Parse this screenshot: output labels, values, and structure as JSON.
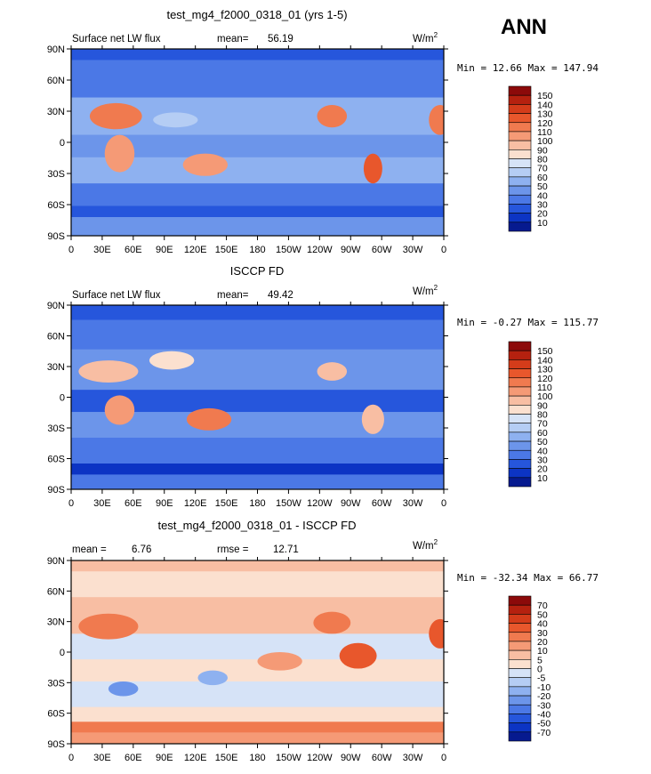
{
  "season": "ANN",
  "units": "W/m",
  "units_sup": "2",
  "x_ticks": [
    "0",
    "30E",
    "60E",
    "90E",
    "120E",
    "150E",
    "180",
    "150W",
    "120W",
    "90W",
    "60W",
    "30W",
    "0"
  ],
  "y_ticks": [
    "90N",
    "60N",
    "30N",
    "0",
    "30S",
    "60S",
    "90S"
  ],
  "chart_data": [
    {
      "type": "heatmap",
      "title": "test_mg4_f2000_0318_01 (yrs 1-5)",
      "left_label": "Surface net LW flux",
      "stat_label": "mean=",
      "stat_value": "56.19",
      "units": "W/m2",
      "min_label": "Min =",
      "min_value": "12.66",
      "max_label": "Max =",
      "max_value": "147.94",
      "x_range": [
        0,
        360
      ],
      "y_range": [
        -90,
        90
      ],
      "colorbar_levels": [
        "150",
        "140",
        "130",
        "120",
        "110",
        "100",
        "90",
        "80",
        "70",
        "60",
        "50",
        "40",
        "30",
        "20",
        "10"
      ],
      "colorbar_colors": [
        "#8c0a0a",
        "#b5210f",
        "#d43c1a",
        "#e8572c",
        "#f07a4f",
        "#f59a76",
        "#f8bea3",
        "#fbe0cf",
        "#d6e3f7",
        "#b5cdf4",
        "#8eb1f0",
        "#6c95ea",
        "#4b78e6",
        "#2656dc",
        "#0c34c4",
        "#061a8f"
      ]
    },
    {
      "type": "heatmap",
      "title": "ISCCP FD",
      "left_label": "Surface net LW flux",
      "stat_label": "mean=",
      "stat_value": "49.42",
      "units": "W/m2",
      "min_label": "Min =",
      "min_value": "-0.27",
      "max_label": "Max =",
      "max_value": "115.77",
      "x_range": [
        0,
        360
      ],
      "y_range": [
        -90,
        90
      ],
      "colorbar_levels": [
        "150",
        "140",
        "130",
        "120",
        "110",
        "100",
        "90",
        "80",
        "70",
        "60",
        "50",
        "40",
        "30",
        "20",
        "10"
      ],
      "colorbar_colors": [
        "#8c0a0a",
        "#b5210f",
        "#d43c1a",
        "#e8572c",
        "#f07a4f",
        "#f59a76",
        "#f8bea3",
        "#fbe0cf",
        "#d6e3f7",
        "#b5cdf4",
        "#8eb1f0",
        "#6c95ea",
        "#4b78e6",
        "#2656dc",
        "#0c34c4",
        "#061a8f"
      ]
    },
    {
      "type": "heatmap",
      "title": "test_mg4_f2000_0318_01 - ISCCP FD",
      "left_label": "mean =",
      "left_value": "6.76",
      "stat_label": "rmse =",
      "stat_value": "12.71",
      "units": "W/m2",
      "min_label": "Min =",
      "min_value": "-32.34",
      "max_label": "Max =",
      "max_value": "66.77",
      "x_range": [
        0,
        360
      ],
      "y_range": [
        -90,
        90
      ],
      "colorbar_levels": [
        "70",
        "50",
        "40",
        "30",
        "20",
        "10",
        "5",
        "0",
        "-5",
        "-10",
        "-20",
        "-30",
        "-40",
        "-50",
        "-70"
      ],
      "colorbar_colors": [
        "#8c0a0a",
        "#b5210f",
        "#d43c1a",
        "#e8572c",
        "#f07a4f",
        "#f59a76",
        "#f8bea3",
        "#fbe0cf",
        "#d6e3f7",
        "#b5cdf4",
        "#8eb1f0",
        "#6c95ea",
        "#4b78e6",
        "#2656dc",
        "#0c34c4",
        "#061a8f"
      ]
    }
  ]
}
